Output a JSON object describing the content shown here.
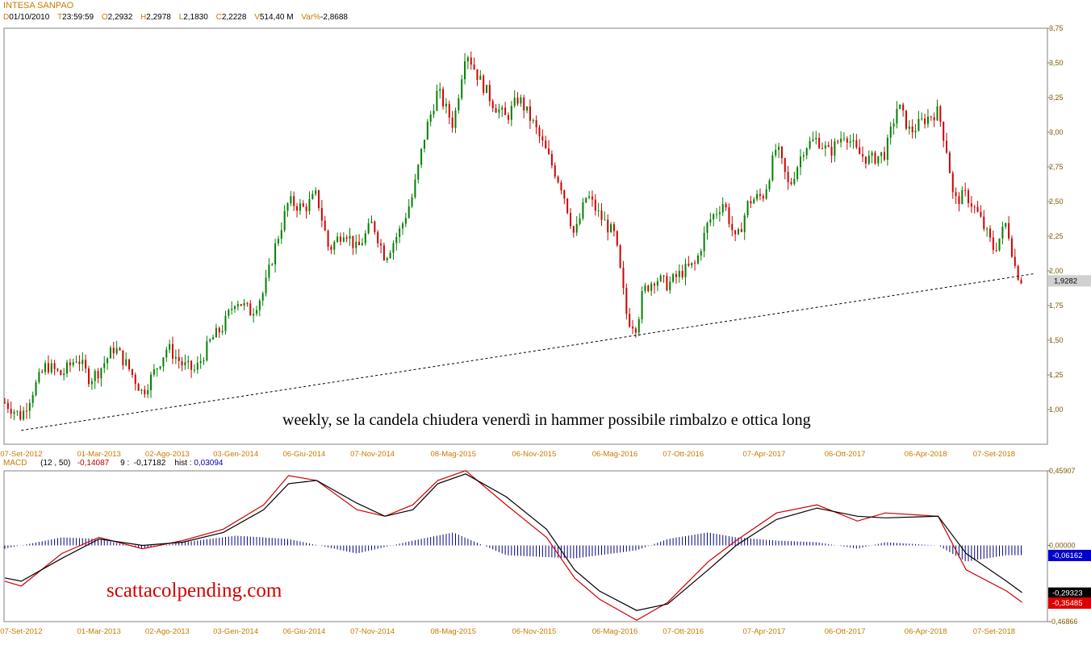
{
  "header": {
    "title": "INTESA SANPAO",
    "fields": [
      {
        "key": "D",
        "value": "01/10/2010"
      },
      {
        "key": "T",
        "value": "23:59:59"
      },
      {
        "key": "O",
        "value": "2,2932"
      },
      {
        "key": "H",
        "value": "2,2978"
      },
      {
        "key": "L",
        "value": "2,1830"
      },
      {
        "key": "C",
        "value": "2,2228"
      },
      {
        "key": "V",
        "value": "514,40 M"
      },
      {
        "key": "Var%",
        "value": "-2,8688"
      }
    ]
  },
  "macd_header": {
    "label": "MACD",
    "params": "(12 , 50)",
    "macd_value": "-0,14087",
    "signal_label": "9",
    "signal_value": "-0,17182",
    "hist_label": "hist",
    "hist_value": "0,03094"
  },
  "annotation": "weekly, se la candela chiudera venerdì in hammer possibile rimbalzo e ottica long",
  "brand": "scattacolpending.com",
  "colors": {
    "up": "#008000",
    "down": "#d00000",
    "macd": "#d00000",
    "signal": "#000000",
    "hist": "#000080",
    "axis_text": "#c87a00"
  },
  "chart_data": [
    {
      "type": "candlestick",
      "title": "INTESA SANPAO",
      "timeframe": "weekly",
      "x_tick_labels": [
        "07-Set-2012",
        "01-Mar-2013",
        "02-Ago-2013",
        "03-Gen-2014",
        "06-Giu-2014",
        "07-Nov-2014",
        "08-Mag-2015",
        "06-Nov-2015",
        "06-Mag-2016",
        "07-Ott-2016",
        "07-Apr-2017",
        "06-Ott-2017",
        "06-Apr-2018",
        "07-Set-2018"
      ],
      "y_tick_labels": [
        "3,75",
        "3,50",
        "3,25",
        "3,00",
        "2,75",
        "2,50",
        "2,25",
        "2,00",
        "1,75",
        "1,50",
        "1,25",
        "1,00"
      ],
      "y_ticks": [
        3.75,
        3.5,
        3.25,
        3.0,
        2.75,
        2.5,
        2.25,
        2.0,
        1.75,
        1.5,
        1.25,
        1.0
      ],
      "ylim": [
        0.8,
        3.75
      ],
      "last_value": 1.9282,
      "last_value_label": "1,9282",
      "series_close": [
        {
          "x": "2012-08-01",
          "y": 1.05
        },
        {
          "x": "2012-09-07",
          "y": 0.95
        },
        {
          "x": "2012-10-05",
          "y": 1.15
        },
        {
          "x": "2012-11-02",
          "y": 1.32
        },
        {
          "x": "2012-12-07",
          "y": 1.25
        },
        {
          "x": "2013-01-11",
          "y": 1.38
        },
        {
          "x": "2013-02-08",
          "y": 1.22
        },
        {
          "x": "2013-03-01",
          "y": 1.28
        },
        {
          "x": "2013-04-05",
          "y": 1.45
        },
        {
          "x": "2013-05-03",
          "y": 1.32
        },
        {
          "x": "2013-06-07",
          "y": 1.12
        },
        {
          "x": "2013-07-05",
          "y": 1.28
        },
        {
          "x": "2013-08-02",
          "y": 1.45
        },
        {
          "x": "2013-09-06",
          "y": 1.32
        },
        {
          "x": "2013-10-04",
          "y": 1.28
        },
        {
          "x": "2013-11-08",
          "y": 1.5
        },
        {
          "x": "2013-12-06",
          "y": 1.6
        },
        {
          "x": "2014-01-03",
          "y": 1.8
        },
        {
          "x": "2014-02-07",
          "y": 1.7
        },
        {
          "x": "2014-03-07",
          "y": 1.85
        },
        {
          "x": "2014-04-04",
          "y": 2.2
        },
        {
          "x": "2014-05-02",
          "y": 2.5
        },
        {
          "x": "2014-06-06",
          "y": 2.45
        },
        {
          "x": "2014-07-04",
          "y": 2.55
        },
        {
          "x": "2014-08-01",
          "y": 2.15
        },
        {
          "x": "2014-09-05",
          "y": 2.3
        },
        {
          "x": "2014-10-03",
          "y": 2.15
        },
        {
          "x": "2014-11-07",
          "y": 2.35
        },
        {
          "x": "2014-12-05",
          "y": 2.1
        },
        {
          "x": "2015-01-09",
          "y": 2.3
        },
        {
          "x": "2015-02-06",
          "y": 2.55
        },
        {
          "x": "2015-03-06",
          "y": 3.0
        },
        {
          "x": "2015-04-03",
          "y": 3.3
        },
        {
          "x": "2015-05-08",
          "y": 3.05
        },
        {
          "x": "2015-06-05",
          "y": 3.6
        },
        {
          "x": "2015-07-03",
          "y": 3.4
        },
        {
          "x": "2015-08-07",
          "y": 3.2
        },
        {
          "x": "2015-09-04",
          "y": 3.1
        },
        {
          "x": "2015-10-02",
          "y": 3.25
        },
        {
          "x": "2015-11-06",
          "y": 3.05
        },
        {
          "x": "2015-12-04",
          "y": 2.85
        },
        {
          "x": "2016-01-08",
          "y": 2.6
        },
        {
          "x": "2016-02-05",
          "y": 2.25
        },
        {
          "x": "2016-03-04",
          "y": 2.55
        },
        {
          "x": "2016-04-01",
          "y": 2.4
        },
        {
          "x": "2016-05-06",
          "y": 2.25
        },
        {
          "x": "2016-06-03",
          "y": 1.65
        },
        {
          "x": "2016-06-24",
          "y": 1.6
        },
        {
          "x": "2016-07-08",
          "y": 1.85
        },
        {
          "x": "2016-08-05",
          "y": 1.95
        },
        {
          "x": "2016-09-02",
          "y": 1.9
        },
        {
          "x": "2016-10-07",
          "y": 2.0
        },
        {
          "x": "2016-11-04",
          "y": 2.05
        },
        {
          "x": "2016-12-02",
          "y": 2.35
        },
        {
          "x": "2017-01-06",
          "y": 2.5
        },
        {
          "x": "2017-02-03",
          "y": 2.2
        },
        {
          "x": "2017-03-03",
          "y": 2.5
        },
        {
          "x": "2017-04-07",
          "y": 2.55
        },
        {
          "x": "2017-05-05",
          "y": 2.9
        },
        {
          "x": "2017-06-02",
          "y": 2.6
        },
        {
          "x": "2017-07-07",
          "y": 2.9
        },
        {
          "x": "2017-08-04",
          "y": 2.95
        },
        {
          "x": "2017-09-01",
          "y": 2.85
        },
        {
          "x": "2017-10-06",
          "y": 3.0
        },
        {
          "x": "2017-11-03",
          "y": 2.85
        },
        {
          "x": "2017-12-01",
          "y": 2.8
        },
        {
          "x": "2018-01-05",
          "y": 2.85
        },
        {
          "x": "2018-02-02",
          "y": 3.2
        },
        {
          "x": "2018-03-02",
          "y": 3.0
        },
        {
          "x": "2018-04-06",
          "y": 3.1
        },
        {
          "x": "2018-05-04",
          "y": 3.15
        },
        {
          "x": "2018-05-25",
          "y": 2.85
        },
        {
          "x": "2018-06-08",
          "y": 2.5
        },
        {
          "x": "2018-07-06",
          "y": 2.55
        },
        {
          "x": "2018-08-03",
          "y": 2.4
        },
        {
          "x": "2018-09-07",
          "y": 2.15
        },
        {
          "x": "2018-10-05",
          "y": 2.35
        },
        {
          "x": "2018-10-26",
          "y": 2.0
        },
        {
          "x": "2018-11-09",
          "y": 1.93
        }
      ],
      "trendline": [
        {
          "x": "2012-09-07",
          "y": 0.85
        },
        {
          "x": "2018-12-07",
          "y": 1.98
        }
      ]
    },
    {
      "type": "line",
      "title": "MACD",
      "y_tick_labels": [
        "0,45907",
        "0,00000",
        "-0,46866"
      ],
      "y_ticks": [
        0.45907,
        0.0,
        -0.46866
      ],
      "ylim": [
        -0.46866,
        0.45907
      ],
      "value_tags": [
        {
          "label": "-0,06162",
          "value": -0.06162,
          "bg": "#0000cc"
        },
        {
          "label": "-0,29323",
          "value": -0.29323,
          "bg": "#000000"
        },
        {
          "label": "-0,35485",
          "value": -0.35485,
          "bg": "#dd0000"
        }
      ],
      "series": [
        {
          "key": "macd",
          "values": [
            {
              "x": "2012-08-01",
              "y": -0.22
            },
            {
              "x": "2012-09-07",
              "y": -0.25
            },
            {
              "x": "2012-12-07",
              "y": -0.05
            },
            {
              "x": "2013-03-01",
              "y": 0.05
            },
            {
              "x": "2013-06-07",
              "y": -0.02
            },
            {
              "x": "2013-09-06",
              "y": 0.03
            },
            {
              "x": "2013-12-06",
              "y": 0.1
            },
            {
              "x": "2014-03-07",
              "y": 0.25
            },
            {
              "x": "2014-05-02",
              "y": 0.43
            },
            {
              "x": "2014-07-04",
              "y": 0.4
            },
            {
              "x": "2014-10-03",
              "y": 0.22
            },
            {
              "x": "2014-12-05",
              "y": 0.18
            },
            {
              "x": "2015-02-06",
              "y": 0.25
            },
            {
              "x": "2015-04-03",
              "y": 0.4
            },
            {
              "x": "2015-06-05",
              "y": 0.46
            },
            {
              "x": "2015-09-04",
              "y": 0.25
            },
            {
              "x": "2015-12-04",
              "y": 0.05
            },
            {
              "x": "2016-02-05",
              "y": -0.2
            },
            {
              "x": "2016-04-01",
              "y": -0.33
            },
            {
              "x": "2016-06-24",
              "y": -0.46
            },
            {
              "x": "2016-09-02",
              "y": -0.35
            },
            {
              "x": "2016-12-02",
              "y": -0.1
            },
            {
              "x": "2017-02-03",
              "y": 0.03
            },
            {
              "x": "2017-05-05",
              "y": 0.2
            },
            {
              "x": "2017-08-04",
              "y": 0.25
            },
            {
              "x": "2017-11-03",
              "y": 0.15
            },
            {
              "x": "2018-01-05",
              "y": 0.2
            },
            {
              "x": "2018-05-04",
              "y": 0.18
            },
            {
              "x": "2018-07-06",
              "y": -0.15
            },
            {
              "x": "2018-10-05",
              "y": -0.28
            },
            {
              "x": "2018-11-09",
              "y": -0.35
            }
          ]
        },
        {
          "key": "signal",
          "values": [
            {
              "x": "2012-08-01",
              "y": -0.2
            },
            {
              "x": "2012-09-07",
              "y": -0.22
            },
            {
              "x": "2012-12-07",
              "y": -0.08
            },
            {
              "x": "2013-03-01",
              "y": 0.04
            },
            {
              "x": "2013-06-07",
              "y": 0.0
            },
            {
              "x": "2013-09-06",
              "y": 0.02
            },
            {
              "x": "2013-12-06",
              "y": 0.08
            },
            {
              "x": "2014-03-07",
              "y": 0.22
            },
            {
              "x": "2014-05-02",
              "y": 0.38
            },
            {
              "x": "2014-07-04",
              "y": 0.4
            },
            {
              "x": "2014-10-03",
              "y": 0.26
            },
            {
              "x": "2014-12-05",
              "y": 0.18
            },
            {
              "x": "2015-02-06",
              "y": 0.22
            },
            {
              "x": "2015-04-03",
              "y": 0.38
            },
            {
              "x": "2015-06-05",
              "y": 0.44
            },
            {
              "x": "2015-09-04",
              "y": 0.3
            },
            {
              "x": "2015-12-04",
              "y": 0.1
            },
            {
              "x": "2016-02-05",
              "y": -0.15
            },
            {
              "x": "2016-04-01",
              "y": -0.28
            },
            {
              "x": "2016-06-24",
              "y": -0.4
            },
            {
              "x": "2016-09-02",
              "y": -0.36
            },
            {
              "x": "2016-12-02",
              "y": -0.15
            },
            {
              "x": "2017-02-03",
              "y": 0.0
            },
            {
              "x": "2017-05-05",
              "y": 0.16
            },
            {
              "x": "2017-08-04",
              "y": 0.23
            },
            {
              "x": "2017-11-03",
              "y": 0.18
            },
            {
              "x": "2018-01-05",
              "y": 0.17
            },
            {
              "x": "2018-05-04",
              "y": 0.18
            },
            {
              "x": "2018-07-06",
              "y": -0.05
            },
            {
              "x": "2018-10-05",
              "y": -0.22
            },
            {
              "x": "2018-11-09",
              "y": -0.29
            }
          ]
        },
        {
          "key": "hist",
          "values": [
            {
              "x": "2012-08-01",
              "y": -0.02
            },
            {
              "x": "2012-12-07",
              "y": 0.05
            },
            {
              "x": "2013-03-01",
              "y": 0.04
            },
            {
              "x": "2013-06-07",
              "y": -0.02
            },
            {
              "x": "2013-09-06",
              "y": 0.02
            },
            {
              "x": "2014-01-03",
              "y": 0.06
            },
            {
              "x": "2014-05-02",
              "y": 0.04
            },
            {
              "x": "2014-10-03",
              "y": -0.05
            },
            {
              "x": "2015-02-06",
              "y": 0.03
            },
            {
              "x": "2015-05-08",
              "y": 0.08
            },
            {
              "x": "2015-09-04",
              "y": -0.06
            },
            {
              "x": "2016-02-05",
              "y": -0.08
            },
            {
              "x": "2016-06-24",
              "y": -0.03
            },
            {
              "x": "2016-09-02",
              "y": 0.04
            },
            {
              "x": "2016-12-02",
              "y": 0.08
            },
            {
              "x": "2017-02-03",
              "y": 0.05
            },
            {
              "x": "2017-05-05",
              "y": 0.03
            },
            {
              "x": "2017-08-04",
              "y": 0.02
            },
            {
              "x": "2017-11-03",
              "y": -0.02
            },
            {
              "x": "2018-01-05",
              "y": 0.02
            },
            {
              "x": "2018-05-04",
              "y": 0.0
            },
            {
              "x": "2018-07-06",
              "y": -0.1
            },
            {
              "x": "2018-10-05",
              "y": -0.06
            },
            {
              "x": "2018-11-09",
              "y": -0.06
            }
          ]
        }
      ]
    }
  ]
}
